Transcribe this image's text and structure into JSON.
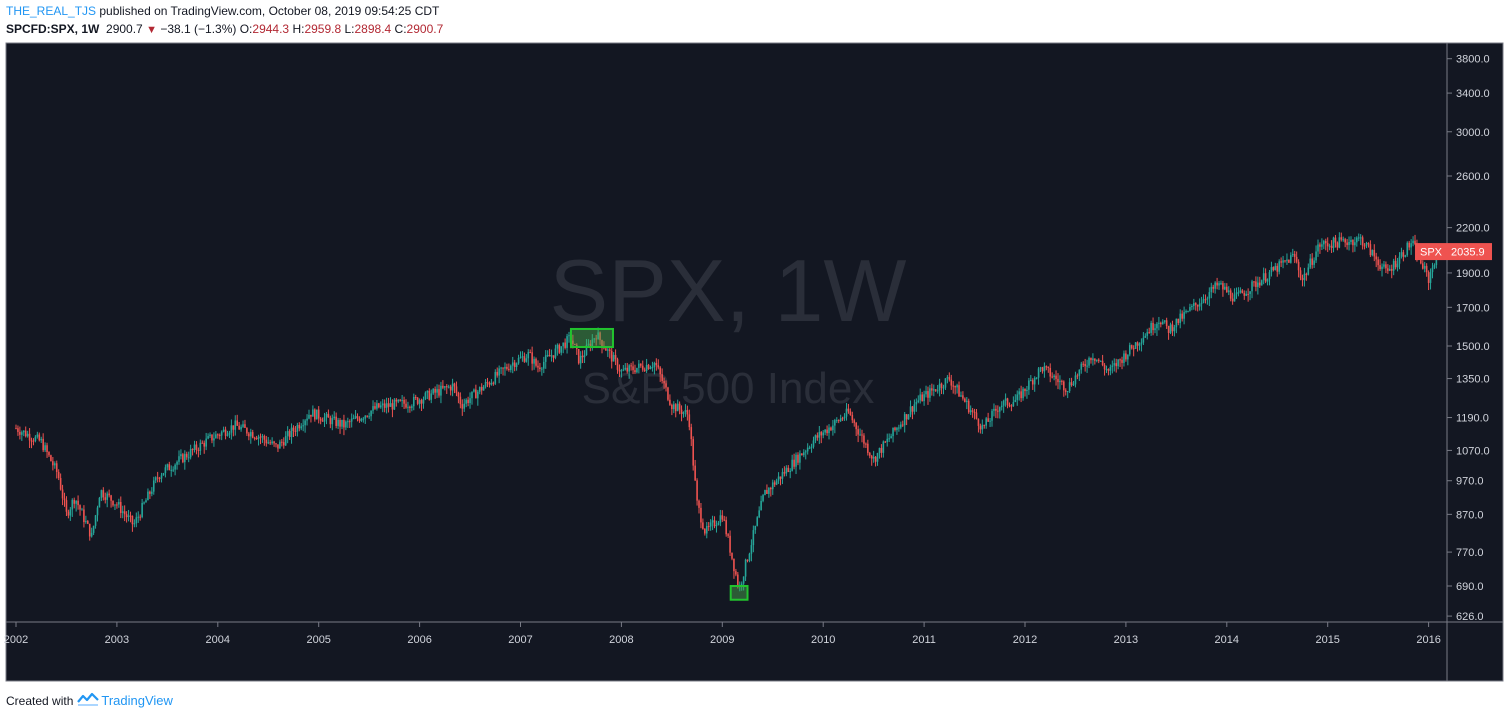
{
  "header": {
    "author": "THE_REAL_TJS",
    "published": " published on TradingView.com, October 08, 2019 09:54:25 CDT",
    "symbol": "SPCFD:SPX, 1W",
    "last": "2900.7",
    "arrow_icon": "down-triangle-icon",
    "change": "−38.1 (−1.3%)",
    "o_label": "O:",
    "o_val": "2944.3",
    "h_label": "H:",
    "h_val": "2959.8",
    "l_label": "L:",
    "l_val": "2898.4",
    "c_label": "C:",
    "c_val": "2900.7"
  },
  "watermark": {
    "symbol": "SPX, 1W",
    "name": "S&P 500 Index"
  },
  "price_label": {
    "tag": "SPX",
    "value": "2035.9"
  },
  "footer": {
    "created_with": "Created with",
    "brand": "TradingView",
    "logo_icon": "tradingview-logo-icon"
  },
  "colors": {
    "background": "#131722",
    "up": "#26a69a",
    "down": "#ef5350",
    "highlight": "#22c32e",
    "axis_text": "#d1d4dc",
    "label_bg": "#ef5350"
  },
  "chart_data": {
    "type": "candlestick",
    "interval": "1W",
    "y_scale": "log",
    "ylim": [
      600,
      4000
    ],
    "y_ticks": [
      3800.0,
      3400.0,
      3000.0,
      2600.0,
      2200.0,
      1900.0,
      1700.0,
      1500.0,
      1350.0,
      1190.0,
      1070.0,
      970.0,
      870.0,
      770.0,
      690.0,
      626.0
    ],
    "x_ticks": [
      "2002",
      "2003",
      "2004",
      "2005",
      "2006",
      "2007",
      "2008",
      "2009",
      "2010",
      "2011",
      "2012",
      "2013",
      "2014",
      "2015",
      "2016"
    ],
    "x_range": [
      "2002-01",
      "2016-02"
    ],
    "close_series": {
      "dates": [
        "2002-01",
        "2002-04",
        "2002-06",
        "2002-07",
        "2002-08",
        "2002-10",
        "2002-11",
        "2003-01",
        "2003-03",
        "2003-06",
        "2003-12",
        "2004-03",
        "2004-06",
        "2004-08",
        "2004-12",
        "2005-04",
        "2005-08",
        "2005-12",
        "2006-05",
        "2006-06",
        "2006-12",
        "2007-02",
        "2007-03",
        "2007-07",
        "2007-08",
        "2007-10",
        "2008-01",
        "2008-05",
        "2008-07",
        "2008-09",
        "2008-10",
        "2008-11",
        "2009-01",
        "2009-03",
        "2009-06",
        "2009-12",
        "2010-04",
        "2010-07",
        "2010-12",
        "2011-04",
        "2011-08",
        "2011-10",
        "2011-12",
        "2012-03",
        "2012-06",
        "2012-09",
        "2012-11",
        "2013-05",
        "2013-06",
        "2013-12",
        "2014-02",
        "2014-09",
        "2014-10",
        "2014-12",
        "2015-05",
        "2015-08",
        "2015-11",
        "2016-01",
        "2016-02"
      ],
      "values": [
        1150,
        1100,
        990,
        870,
        920,
        810,
        940,
        900,
        840,
        990,
        1110,
        1160,
        1120,
        1080,
        1210,
        1160,
        1230,
        1250,
        1320,
        1240,
        1420,
        1460,
        1400,
        1540,
        1430,
        1560,
        1380,
        1420,
        1240,
        1200,
        900,
        820,
        870,
        683,
        930,
        1110,
        1210,
        1040,
        1250,
        1350,
        1150,
        1240,
        1260,
        1400,
        1310,
        1460,
        1380,
        1640,
        1580,
        1830,
        1750,
        2010,
        1860,
        2080,
        2120,
        1900,
        2100,
        1860,
        2035.9
      ]
    },
    "annotations": [
      {
        "type": "rectangle",
        "from": "2007-07",
        "to": "2007-12",
        "price_range": [
          1495,
          1585
        ]
      },
      {
        "type": "rectangle",
        "from": "2009-02",
        "to": "2009-04",
        "price_range": [
          660,
          690
        ]
      }
    ]
  }
}
